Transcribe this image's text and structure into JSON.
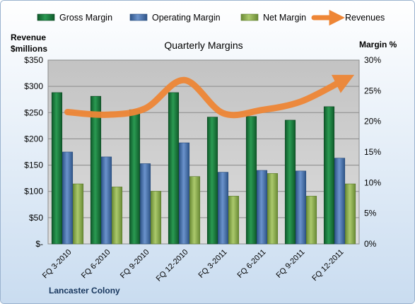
{
  "chart_data": {
    "type": "bar",
    "title": "Quarterly Margins",
    "categories": [
      "FQ 3-2010",
      "FQ 6-2010",
      "FQ 9-2010",
      "FQ 12-2010",
      "FQ 3-2011",
      "FQ 6-2011",
      "FQ 9-2011",
      "FQ 12-2011"
    ],
    "series": [
      {
        "name": "Gross Margin",
        "type": "bar",
        "axis": "right",
        "unit": "%",
        "color": "#1e7d3e",
        "values": [
          24.7,
          24.1,
          21.9,
          24.7,
          20.7,
          20.8,
          20.2,
          22.4
        ]
      },
      {
        "name": "Operating Margin",
        "type": "bar",
        "axis": "right",
        "unit": "%",
        "color": "#4a76b4",
        "values": [
          15.0,
          14.2,
          13.1,
          16.5,
          11.7,
          12.0,
          11.9,
          14.0
        ]
      },
      {
        "name": "Net Margin",
        "type": "bar",
        "axis": "right",
        "unit": "%",
        "color": "#8db04e",
        "values": [
          9.8,
          9.3,
          8.6,
          11.0,
          7.8,
          11.5,
          7.8,
          9.8
        ]
      },
      {
        "name": "Revenues",
        "type": "line",
        "axis": "left",
        "unit": "$millions",
        "color": "#ee8636",
        "values": [
          251,
          246,
          258,
          312,
          249,
          255,
          271,
          308
        ]
      }
    ],
    "y_left": {
      "label_line1": "Revenue",
      "label_line2": "$millions",
      "range": [
        0,
        350
      ],
      "ticks": [
        0,
        50,
        100,
        150,
        200,
        250,
        300,
        350
      ],
      "tick_labels": [
        "$-",
        "$50",
        "$100",
        "$150",
        "$200",
        "$250",
        "$300",
        "$350"
      ]
    },
    "y_right": {
      "label": "Margin %",
      "range": [
        0,
        30
      ],
      "ticks": [
        0,
        5,
        10,
        15,
        20,
        25,
        30
      ],
      "tick_labels": [
        "0%",
        "5%",
        "10%",
        "15%",
        "20%",
        "25%",
        "30%"
      ]
    },
    "grid": true,
    "legend_position": "top",
    "footer_label": "Lancaster Colony"
  }
}
